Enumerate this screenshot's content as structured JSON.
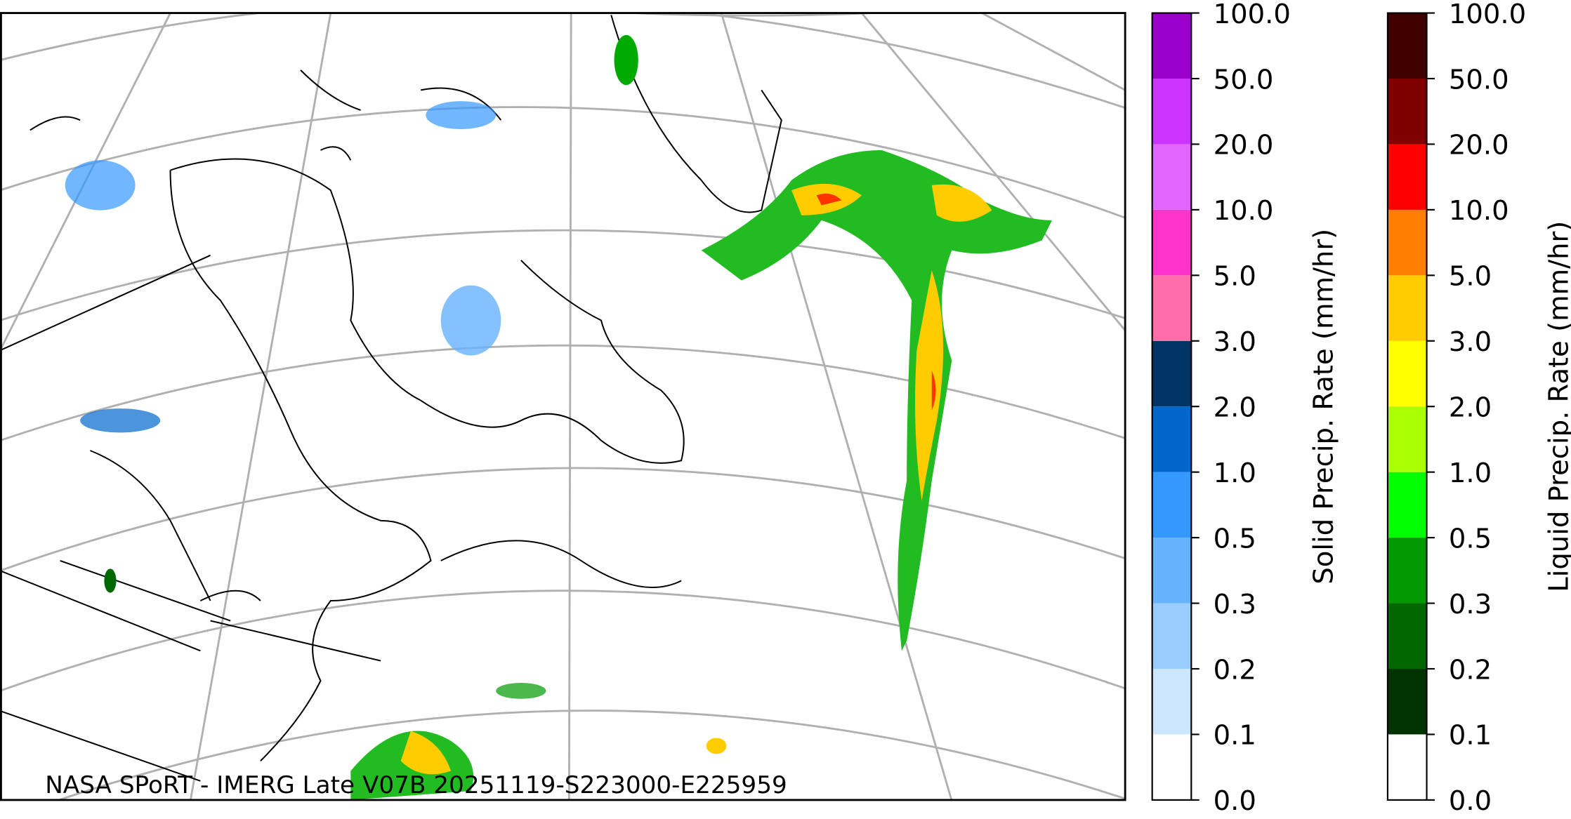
{
  "map": {
    "caption": "NASA SPoRT - IMERG Late V07B 20251119-S223000-E225959"
  },
  "colorbars": [
    {
      "label": "Solid Precip. Rate (mm/hr)",
      "ticks": [
        "0.0",
        "0.1",
        "0.2",
        "0.3",
        "0.5",
        "1.0",
        "2.0",
        "3.0",
        "5.0",
        "10.0",
        "20.0",
        "50.0",
        "100.0"
      ],
      "colors": [
        "#ffffff",
        "#cce6ff",
        "#99ccff",
        "#66b2ff",
        "#3399ff",
        "#0066cc",
        "#003366",
        "#ff6eaa",
        "#ff33cc",
        "#e066ff",
        "#cc33ff",
        "#9900cc"
      ]
    },
    {
      "label": "Liquid Precip. Rate (mm/hr)",
      "ticks": [
        "0.0",
        "0.1",
        "0.2",
        "0.3",
        "0.5",
        "1.0",
        "2.0",
        "3.0",
        "5.0",
        "10.0",
        "20.0",
        "50.0",
        "100.0"
      ],
      "colors": [
        "#ffffff",
        "#003300",
        "#006600",
        "#009900",
        "#00ff00",
        "#aaff00",
        "#ffff00",
        "#ffcc00",
        "#ff8000",
        "#ff0000",
        "#800000",
        "#400000"
      ]
    }
  ]
}
